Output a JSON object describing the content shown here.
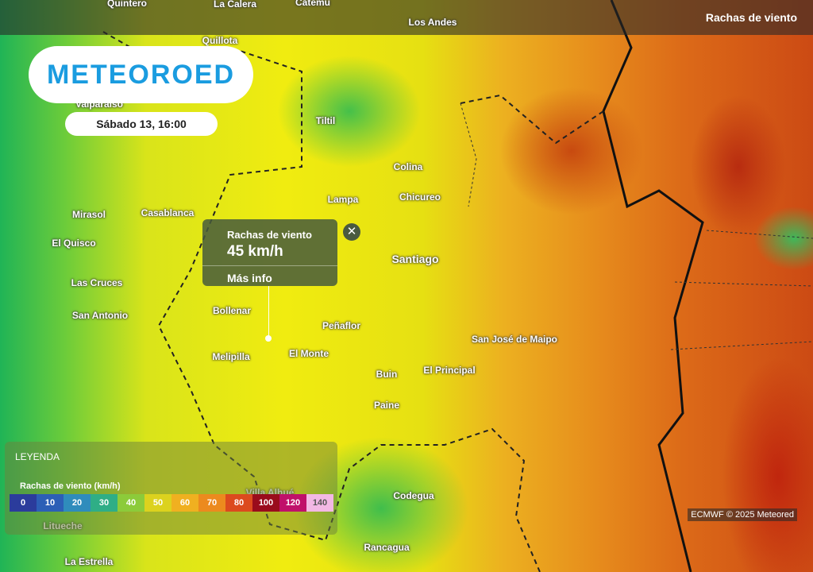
{
  "header": {
    "layer": "Rachas de viento"
  },
  "logo": "METEOROED",
  "date": "Sábado 13, 16:00",
  "places": [
    "Quintero",
    "La Calera",
    "Catemu",
    "Los Andes",
    "Quillota",
    "Valparaíso",
    "Tiltil",
    "Colina",
    "Lampa",
    "Chicureo",
    "Mirasol",
    "Casablanca",
    "El Quisco",
    "Las Cruces",
    "San Antonio",
    "Bollenar",
    "Melipilla",
    "El Monte",
    "Peñaflor",
    "Santiago",
    "San José de Maipo",
    "El Principal",
    "Buin",
    "Paine",
    "Villa Alhué",
    "Litueche",
    "Codegua",
    "Rancagua",
    "La Estrella"
  ],
  "popup": {
    "title": "Rachas de viento",
    "value": "45 km/h",
    "link": "Más info"
  },
  "legend": {
    "title": "LEYENDA",
    "subtitle": "Rachas de viento (km/h)",
    "stops": [
      {
        "value": 0,
        "color": "#2b3c9c"
      },
      {
        "value": 10,
        "color": "#2c5fb6"
      },
      {
        "value": 20,
        "color": "#2f8cbc"
      },
      {
        "value": 30,
        "color": "#2fae86"
      },
      {
        "value": 40,
        "color": "#8ccb3a"
      },
      {
        "value": 50,
        "color": "#dcd21e"
      },
      {
        "value": 60,
        "color": "#f0b020"
      },
      {
        "value": 70,
        "color": "#ec8a1e"
      },
      {
        "value": 80,
        "color": "#dc4a1e"
      },
      {
        "value": 100,
        "color": "#9a0c1c"
      },
      {
        "value": 120,
        "color": "#c0106a"
      },
      {
        "value": 140,
        "color": "#f2b8e4"
      }
    ]
  },
  "attribution": "ECMWF © 2025 Meteored"
}
